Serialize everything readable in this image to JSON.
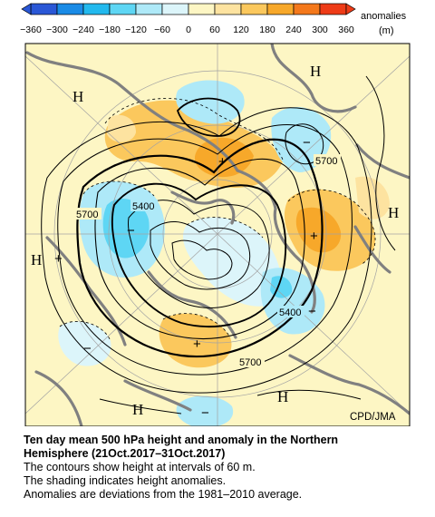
{
  "colorbar": {
    "label_line1": "anomalies",
    "label_line2": "(m)",
    "ticks": [
      "−360",
      "−300",
      "−240",
      "−180",
      "−120",
      "−60",
      "0",
      "60",
      "120",
      "180",
      "240",
      "300",
      "360"
    ],
    "bin_colors": [
      "#2a57d6",
      "#1a8be6",
      "#22b9ee",
      "#5ed6f4",
      "#aee9f8",
      "#dcf5fa",
      "#fdf6c4",
      "#fde3a0",
      "#fbc85d",
      "#f7a82a",
      "#f4781b",
      "#ee3b17"
    ]
  },
  "map": {
    "credit": "CPD/JMA",
    "contour_labels": [
      "5700",
      "5400",
      "5700",
      "5400",
      "5700"
    ],
    "high_markers": [
      "H",
      "H",
      "H",
      "H",
      "H",
      "H"
    ],
    "plus_markers": [
      "+",
      "+",
      "+",
      "+"
    ],
    "minus_markers": [
      "−",
      "−",
      "−",
      "−",
      "−"
    ],
    "colors": {
      "background": "#fdf6c4",
      "positive": "#f7a82a",
      "negative": "#5ed6f4",
      "land": "#7f7f7f"
    }
  },
  "caption": {
    "title_line1": "Ten day mean 500 hPa height and anomaly in the Northern",
    "title_line2": "Hemisphere (21Oct.2017–31Oct.2017)",
    "line1": "The contours show height at intervals of 60 m.",
    "line2": "The shading indicates height anomalies.",
    "line3": "Anomalies are deviations from the 1981–2010 average."
  }
}
